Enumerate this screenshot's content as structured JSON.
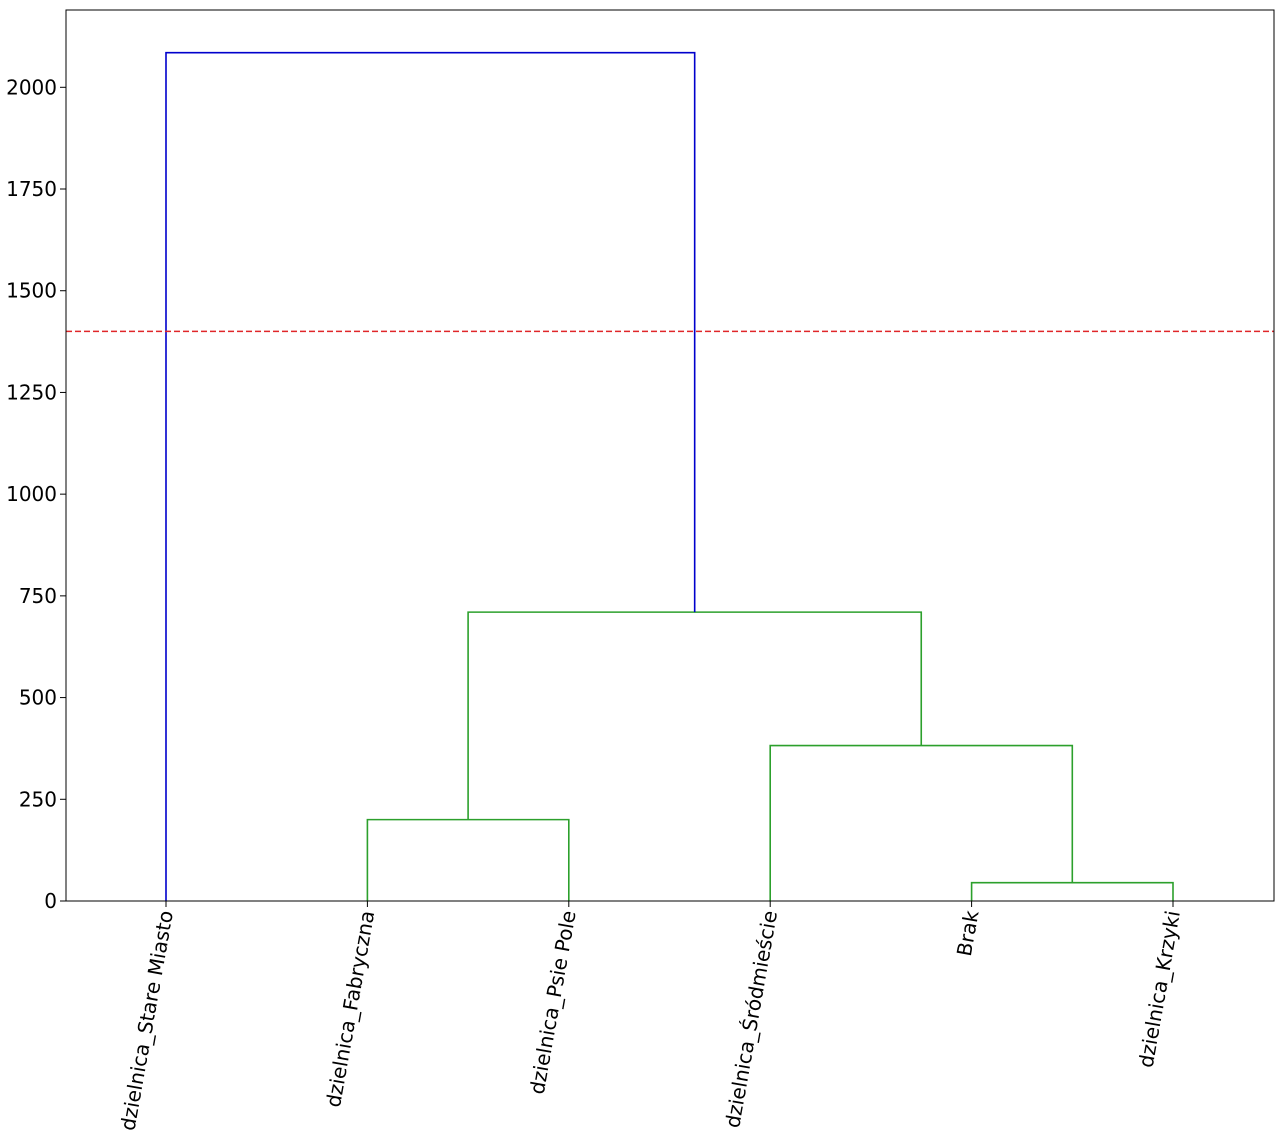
{
  "chart_data": {
    "type": "dendrogram",
    "title": "",
    "xlabel": "",
    "ylabel": "",
    "ylim": [
      0,
      2190
    ],
    "y_ticks": [
      0,
      250,
      500,
      750,
      1000,
      1250,
      1500,
      1750,
      2000
    ],
    "y_tick_labels": [
      "0",
      "250",
      "500",
      "750",
      "1000",
      "1250",
      "1500",
      "1750",
      "2000"
    ],
    "leaves": [
      "dzielnica_Stare Miasto",
      "dzielnica_Fabryczna",
      "dzielnica_Psie Pole",
      "dzielnica_Śródmieście",
      "Brak",
      "dzielnica_Krzyki"
    ],
    "merges": [
      {
        "left": 4,
        "right": 5,
        "height": 45,
        "color": "#2ca02c"
      },
      {
        "left": 1,
        "right": 2,
        "height": 200,
        "color": "#2ca02c"
      },
      {
        "left": 3,
        "right": "m0",
        "height": 382,
        "color": "#2ca02c"
      },
      {
        "left": "m1",
        "right": "m2",
        "height": 710,
        "color": "#2ca02c"
      },
      {
        "left": 0,
        "right": "m3",
        "height": 2085,
        "color": "#0000cc"
      }
    ],
    "threshold": {
      "value": 1400,
      "color": "#e0262a",
      "style": "dashed"
    },
    "grid": false,
    "legend": "none"
  }
}
